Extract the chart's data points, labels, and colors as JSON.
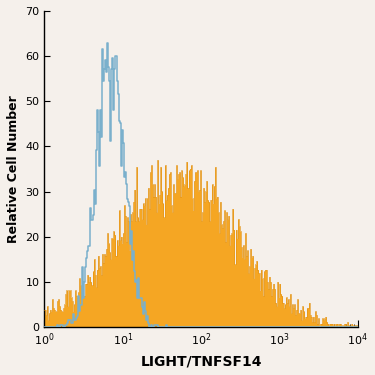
{
  "title": "",
  "xlabel": "LIGHT/TNFSF14",
  "ylabel": "Relative Cell Number",
  "ylim": [
    0,
    70
  ],
  "yticks": [
    0,
    10,
    20,
    30,
    40,
    50,
    60,
    70
  ],
  "background_color": "#f5f0eb",
  "blue_color": "#7ab0cc",
  "orange_color": "#f5a623",
  "orange_edge_color": "#e09010",
  "figsize": [
    3.75,
    3.75
  ],
  "dpi": 100,
  "blue_log_mean": 0.84,
  "blue_log_std": 0.18,
  "blue_peak": 63,
  "orange_log_mean": 1.7,
  "orange_log_std": 0.75,
  "orange_peak": 37,
  "n_bins": 300
}
